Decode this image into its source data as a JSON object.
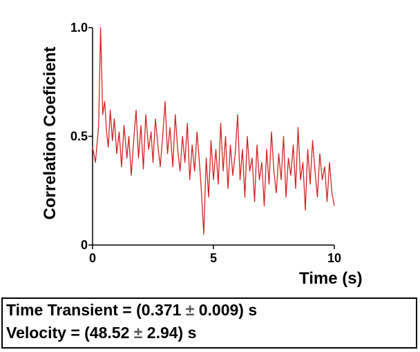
{
  "chart_data": {
    "type": "line",
    "xlabel": "Time (s)",
    "ylabel": "Correlation Coeficient",
    "xlim": [
      0,
      10
    ],
    "ylim": [
      0,
      1.0
    ],
    "x_ticks": [
      0,
      5,
      10
    ],
    "y_ticks": [
      0,
      0.5,
      1.0
    ],
    "x_tick_labels": [
      "0",
      "5",
      "10"
    ],
    "y_tick_labels": [
      "0",
      "0.5",
      "1.0"
    ],
    "grid": false,
    "line_color": "#d42020",
    "series": [
      {
        "x": [
          0,
          0.12,
          0.25,
          0.33,
          0.42,
          0.5,
          0.58,
          0.65,
          0.73,
          0.82,
          0.9,
          1.0,
          1.1,
          1.2,
          1.3,
          1.42,
          1.5,
          1.6,
          1.7,
          1.8,
          1.9,
          2.0,
          2.1,
          2.2,
          2.32,
          2.42,
          2.5,
          2.6,
          2.7,
          2.8,
          2.9,
          3.0,
          3.1,
          3.2,
          3.32,
          3.42,
          3.52,
          3.62,
          3.72,
          3.82,
          3.92,
          4.02,
          4.12,
          4.22,
          4.32,
          4.42,
          4.5,
          4.6,
          4.7,
          4.8,
          4.9,
          5.0,
          5.1,
          5.2,
          5.3,
          5.4,
          5.5,
          5.6,
          5.7,
          5.8,
          5.9,
          6.0,
          6.1,
          6.2,
          6.3,
          6.4,
          6.5,
          6.6,
          6.7,
          6.8,
          6.9,
          7.0,
          7.1,
          7.2,
          7.3,
          7.4,
          7.5,
          7.6,
          7.7,
          7.8,
          7.9,
          8.0,
          8.1,
          8.2,
          8.3,
          8.4,
          8.5,
          8.6,
          8.7,
          8.8,
          8.9,
          9.0,
          9.1,
          9.2,
          9.3,
          9.4,
          9.5,
          9.6,
          9.7,
          9.8,
          9.9,
          10.0
        ],
        "y": [
          0.45,
          0.38,
          0.55,
          1.0,
          0.6,
          0.66,
          0.52,
          0.45,
          0.62,
          0.48,
          0.58,
          0.42,
          0.52,
          0.36,
          0.55,
          0.4,
          0.5,
          0.32,
          0.48,
          0.62,
          0.4,
          0.55,
          0.35,
          0.6,
          0.44,
          0.52,
          0.38,
          0.58,
          0.46,
          0.36,
          0.5,
          0.66,
          0.42,
          0.54,
          0.36,
          0.6,
          0.44,
          0.34,
          0.5,
          0.38,
          0.56,
          0.3,
          0.46,
          0.34,
          0.52,
          0.38,
          0.25,
          0.05,
          0.4,
          0.22,
          0.48,
          0.3,
          0.44,
          0.28,
          0.56,
          0.34,
          0.5,
          0.26,
          0.46,
          0.32,
          0.42,
          0.6,
          0.3,
          0.44,
          0.22,
          0.5,
          0.34,
          0.4,
          0.2,
          0.46,
          0.3,
          0.38,
          0.18,
          0.44,
          0.28,
          0.52,
          0.34,
          0.24,
          0.42,
          0.3,
          0.5,
          0.22,
          0.4,
          0.32,
          0.46,
          0.26,
          0.54,
          0.3,
          0.38,
          0.16,
          0.44,
          0.28,
          0.48,
          0.34,
          0.22,
          0.42,
          0.3,
          0.36,
          0.2,
          0.38,
          0.24,
          0.18
        ]
      }
    ]
  },
  "results": {
    "line1": "Time Transient  =  (0.371",
    "line1_pm": "±",
    "line1_end": "0.009) s",
    "line2": "Velocity  =  (48.52",
    "line2_pm": "±",
    "line2_end": "2.94) s"
  }
}
